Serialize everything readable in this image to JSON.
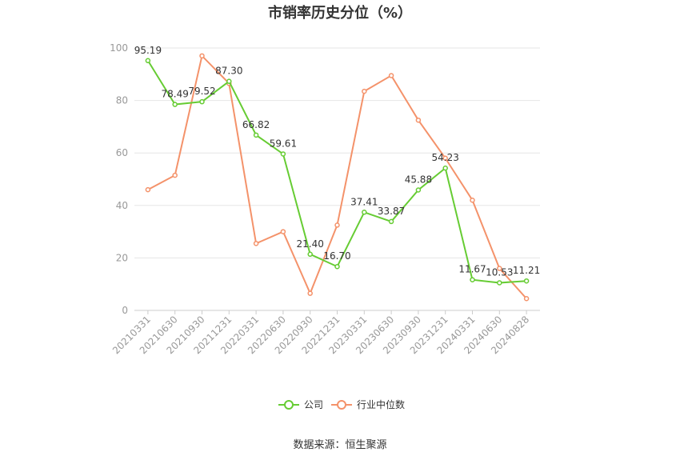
{
  "title": "市销率历史分位（%）",
  "source": "数据来源：恒生聚源",
  "colors": {
    "company": "#66cc33",
    "industry": "#f4926a",
    "grid": "#e6e6e6",
    "axis": "#999999",
    "label": "#333333"
  },
  "chart_data": {
    "type": "line",
    "title": "市销率历史分位（%）",
    "categories": [
      "20210331",
      "20210630",
      "20210930",
      "20211231",
      "20220331",
      "20220630",
      "20220930",
      "20221231",
      "20230331",
      "20230630",
      "20230930",
      "20231231",
      "20240331",
      "20240630",
      "20240828"
    ],
    "ylim": [
      0,
      100
    ],
    "yticks": [
      0,
      20,
      40,
      60,
      80,
      100
    ],
    "grid": true,
    "legend": "bottom-center",
    "series": [
      {
        "name": "公司",
        "color": "#66cc33",
        "labels": true,
        "values": [
          95.19,
          78.49,
          79.52,
          87.3,
          66.82,
          59.61,
          21.4,
          16.7,
          37.41,
          33.87,
          45.88,
          54.23,
          11.67,
          10.53,
          11.21
        ]
      },
      {
        "name": "行业中位数",
        "color": "#f4926a",
        "labels": false,
        "values": [
          46,
          51.5,
          97,
          86.5,
          25.5,
          30,
          6.5,
          32.5,
          83.5,
          89.5,
          72.5,
          58,
          42,
          16,
          4.5
        ]
      }
    ]
  }
}
